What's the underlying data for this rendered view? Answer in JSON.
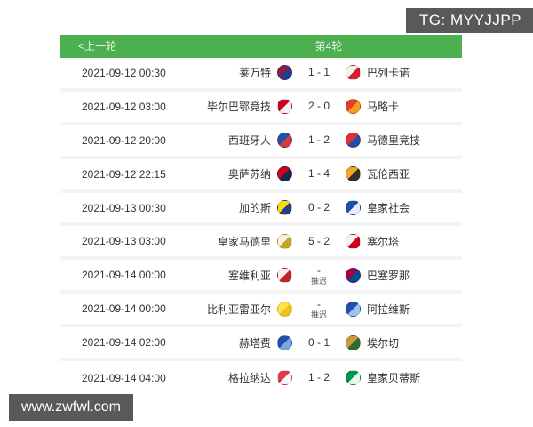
{
  "overlays": {
    "tg_badge": "TG: MYYJJPP",
    "watermark": "www.zwfwl.com"
  },
  "header": {
    "prev_round_label": "<上一轮",
    "round_title": "第4轮"
  },
  "colors": {
    "accent_green": "#4caf50",
    "overlay_gray": "#595959",
    "row_separator": "#f4f4f4",
    "row_text": "#333333"
  },
  "rows": [
    {
      "time": "2021-09-12 00:30",
      "home": {
        "name": "莱万特",
        "icon": "levante-crest-icon",
        "colors": [
          "#8c1f40",
          "#1d3f95"
        ]
      },
      "score": {
        "main": "1 - 1",
        "sub": ""
      },
      "away": {
        "name": "巴列卡诺",
        "icon": "rayo-vallecano-crest-icon",
        "colors": [
          "#f3f3f3",
          "#d81e2c"
        ]
      }
    },
    {
      "time": "2021-09-12 03:00",
      "home": {
        "name": "毕尔巴鄂竞技",
        "icon": "athletic-bilbao-crest-icon",
        "colors": [
          "#d0021b",
          "#f3f3f3"
        ]
      },
      "score": {
        "main": "2 - 0",
        "sub": ""
      },
      "away": {
        "name": "马略卡",
        "icon": "mallorca-crest-icon",
        "colors": [
          "#e2402b",
          "#f0a01e"
        ]
      }
    },
    {
      "time": "2021-09-12 20:00",
      "home": {
        "name": "西班牙人",
        "icon": "espanyol-crest-icon",
        "colors": [
          "#2150a8",
          "#d93a3a"
        ]
      },
      "score": {
        "main": "1 - 2",
        "sub": ""
      },
      "away": {
        "name": "马德里竞技",
        "icon": "atletico-madrid-crest-icon",
        "colors": [
          "#e03131",
          "#2150a8"
        ]
      }
    },
    {
      "time": "2021-09-12 22:15",
      "home": {
        "name": "奥萨苏纳",
        "icon": "osasuna-crest-icon",
        "colors": [
          "#d0021b",
          "#0d2c54"
        ]
      },
      "score": {
        "main": "1 - 4",
        "sub": ""
      },
      "away": {
        "name": "瓦伦西亚",
        "icon": "valencia-crest-icon",
        "colors": [
          "#f5a623",
          "#33312e"
        ]
      }
    },
    {
      "time": "2021-09-13 00:30",
      "home": {
        "name": "加的斯",
        "icon": "cadiz-crest-icon",
        "colors": [
          "#ffdd00",
          "#1d3f95"
        ]
      },
      "score": {
        "main": "0 - 2",
        "sub": ""
      },
      "away": {
        "name": "皇家社会",
        "icon": "real-sociedad-crest-icon",
        "colors": [
          "#1d50a2",
          "#e8eefc"
        ]
      }
    },
    {
      "time": "2021-09-13 03:00",
      "home": {
        "name": "皇家马德里",
        "icon": "real-madrid-crest-icon",
        "colors": [
          "#f7f3e0",
          "#c9a227"
        ]
      },
      "score": {
        "main": "5 - 2",
        "sub": ""
      },
      "away": {
        "name": "塞尔塔",
        "icon": "celta-vigo-crest-icon",
        "colors": [
          "#f3f3f3",
          "#d0021b"
        ]
      }
    },
    {
      "time": "2021-09-14 00:00",
      "home": {
        "name": "塞维利亚",
        "icon": "sevilla-crest-icon",
        "colors": [
          "#f6f2e8",
          "#c21f2f"
        ]
      },
      "score": {
        "main": "-",
        "sub": "推迟"
      },
      "away": {
        "name": "巴塞罗那",
        "icon": "barcelona-crest-icon",
        "colors": [
          "#a50044",
          "#004d98"
        ]
      }
    },
    {
      "time": "2021-09-14 00:00",
      "home": {
        "name": "比利亚雷亚尔",
        "icon": "villarreal-crest-icon",
        "colors": [
          "#ffe14d",
          "#f0c11a"
        ]
      },
      "score": {
        "main": "-",
        "sub": "推迟"
      },
      "away": {
        "name": "阿拉维斯",
        "icon": "alaves-crest-icon",
        "colors": [
          "#2150a8",
          "#9fc3ef"
        ]
      }
    },
    {
      "time": "2021-09-14 02:00",
      "home": {
        "name": "赫塔费",
        "icon": "getafe-crest-icon",
        "colors": [
          "#2150a8",
          "#7aa7e0"
        ]
      },
      "score": {
        "main": "0 - 1",
        "sub": ""
      },
      "away": {
        "name": "埃尔切",
        "icon": "elche-crest-icon",
        "colors": [
          "#c99b3f",
          "#2d6b2f"
        ]
      }
    },
    {
      "time": "2021-09-14 04:00",
      "home": {
        "name": "格拉纳达",
        "icon": "granada-crest-icon",
        "colors": [
          "#e23b4a",
          "#f8f8f8"
        ]
      },
      "score": {
        "main": "1 - 2",
        "sub": ""
      },
      "away": {
        "name": "皇家贝蒂斯",
        "icon": "real-betis-crest-icon",
        "colors": [
          "#00954c",
          "#e8f7ee"
        ]
      }
    }
  ]
}
